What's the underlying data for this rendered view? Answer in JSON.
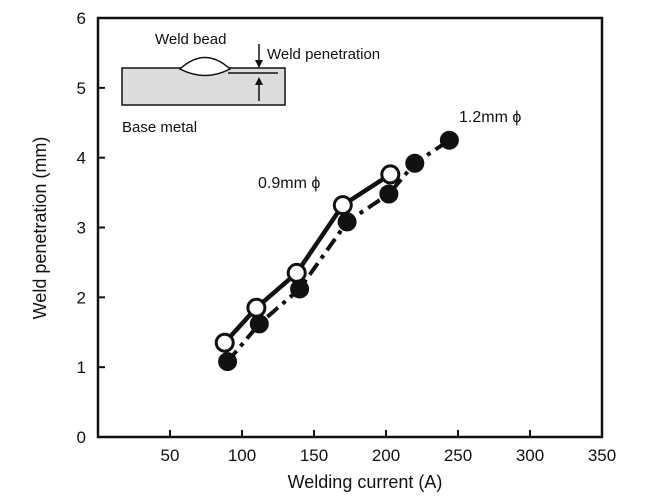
{
  "chart_data": {
    "type": "line",
    "title": "",
    "xlabel": "Welding current (A)",
    "ylabel": "Weld penetration (mm)",
    "xlim": [
      0,
      350
    ],
    "ylim": [
      0,
      6
    ],
    "x_ticks": [
      "50",
      "100",
      "150",
      "200",
      "250",
      "300",
      "350"
    ],
    "y_ticks": [
      "0",
      "1",
      "2",
      "3",
      "4",
      "5",
      "6"
    ],
    "grid": false,
    "series": [
      {
        "name": "0.9mm ϕ",
        "line_style": "solid",
        "marker": "open-circle",
        "color": "#111111",
        "x": [
          88,
          110,
          138,
          170,
          203
        ],
        "y": [
          1.35,
          1.85,
          2.35,
          3.32,
          3.76
        ]
      },
      {
        "name": "1.2mm ϕ",
        "line_style": "dash-dot",
        "marker": "filled-circle",
        "color": "#111111",
        "x": [
          90,
          112,
          140,
          173,
          202,
          220,
          244
        ],
        "y": [
          1.08,
          1.62,
          2.12,
          3.08,
          3.48,
          3.92,
          4.25
        ]
      }
    ],
    "inset": {
      "weld_bead_label": "Weld bead",
      "penetration_label": "Weld penetration",
      "base_metal_label": "Base metal"
    }
  }
}
